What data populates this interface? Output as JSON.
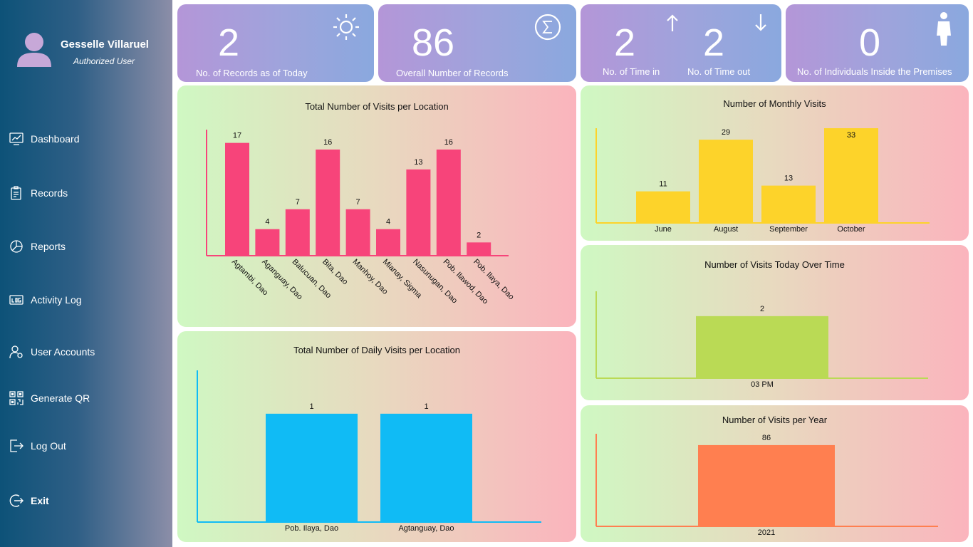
{
  "user": {
    "name": "Gesselle Villaruel",
    "role": "Authorized User"
  },
  "nav": [
    {
      "key": "dashboard",
      "label": "Dashboard",
      "icon": "dashboard-icon"
    },
    {
      "key": "records",
      "label": "Records",
      "icon": "clipboard-icon"
    },
    {
      "key": "reports",
      "label": "Reports",
      "icon": "pie-chart-icon"
    },
    {
      "key": "activity-log",
      "label": "Activity Log",
      "icon": "log-icon"
    },
    {
      "key": "user-accounts",
      "label": "User Accounts",
      "icon": "user-gear-icon"
    },
    {
      "key": "generate-qr",
      "label": "Generate QR",
      "icon": "qr-code-icon"
    },
    {
      "key": "log-out",
      "label": "Log Out",
      "icon": "logout-icon"
    },
    {
      "key": "exit",
      "label": "Exit",
      "icon": "exit-icon"
    }
  ],
  "stats": {
    "today": {
      "value": "2",
      "label": "No. of Records as of Today",
      "icon": "sun-icon"
    },
    "overall": {
      "value": "86",
      "label": "Overall Number of Records",
      "icon": "sigma-icon"
    },
    "time_in": {
      "value": "2",
      "label": "No. of Time in",
      "icon": "arrow-up-icon"
    },
    "time_out": {
      "value": "2",
      "label": "No. of Time out",
      "icon": "arrow-down-icon"
    },
    "inside": {
      "value": "0",
      "label": "No. of Individuals Inside the Premises",
      "icon": "person-icon"
    }
  },
  "colors": {
    "location_bars": "#f7447a",
    "monthly_bars": "#fdd32a",
    "daily_bars": "#10bbf5",
    "today_bars": "#bada55",
    "yearly_bars": "#ff7f50"
  },
  "chart_data": [
    {
      "id": "location",
      "type": "bar",
      "title": "Total Number of Visits per Location",
      "categories": [
        "Agtambi, Dao",
        "Aganguay, Dao",
        "Balucuan, Dao",
        "Bita, Dao",
        "Manhoy, Dao",
        "Mianay, Sigma",
        "Nasunugan, Dao",
        "Pob. Ilawod, Dao",
        "Pob. Ilaya, Dao"
      ],
      "values": [
        17,
        4,
        7,
        16,
        7,
        4,
        13,
        16,
        2
      ],
      "ylim": [
        0,
        19
      ]
    },
    {
      "id": "monthly",
      "type": "bar",
      "title": "Number of Monthly Visits",
      "categories": [
        "June",
        "August",
        "September",
        "October"
      ],
      "values": [
        11,
        29,
        13,
        33
      ],
      "ylim": [
        0,
        33
      ]
    },
    {
      "id": "daily",
      "type": "bar",
      "title": "Total Number of Daily Visits per Location",
      "categories": [
        "Pob. Ilaya, Dao",
        "Agtanguay, Dao"
      ],
      "values": [
        1,
        1
      ],
      "ylim": [
        0,
        1.4
      ]
    },
    {
      "id": "today",
      "type": "bar",
      "title": "Number of Visits Today Over Time",
      "categories": [
        "03 PM"
      ],
      "values": [
        2
      ],
      "ylim": [
        0,
        2.8
      ]
    },
    {
      "id": "yearly",
      "type": "bar",
      "title": "Number of Visits per Year",
      "categories": [
        "2021"
      ],
      "values": [
        86
      ],
      "ylim": [
        0,
        98
      ]
    }
  ]
}
